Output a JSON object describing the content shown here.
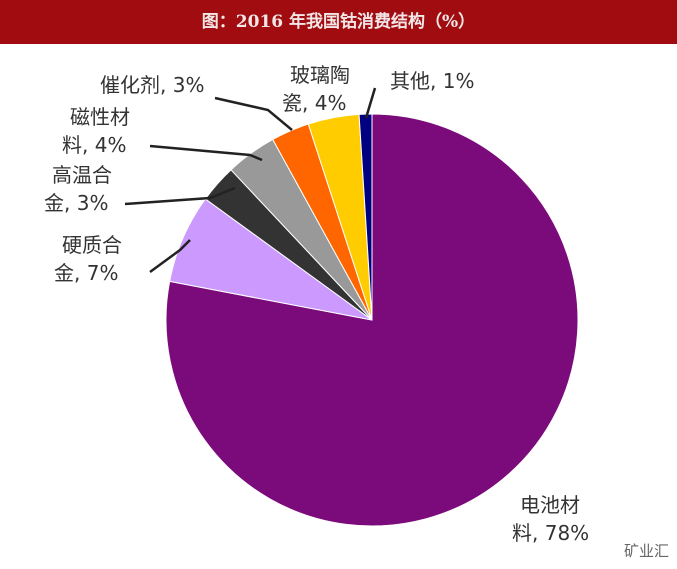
{
  "title": "图：2016 年我国钴消费结构（%）",
  "watermark": "矿业汇",
  "chart_data": {
    "type": "pie",
    "title": "图：2016 年我国钴消费结构（%）",
    "slices": [
      {
        "name": "电池材料",
        "value": 78,
        "label": [
          "电池材",
          "料, 78%"
        ],
        "color": "#7b0a7b"
      },
      {
        "name": "硬质合金",
        "value": 7,
        "label": [
          "硬质合",
          "金, 7%"
        ],
        "color": "#cc99ff"
      },
      {
        "name": "高温合金",
        "value": 3,
        "label": [
          "高温合",
          "金, 3%"
        ],
        "color": "#333333"
      },
      {
        "name": "磁性材料",
        "value": 4,
        "label": [
          "磁性材",
          "料, 4%"
        ],
        "color": "#999999"
      },
      {
        "name": "催化剂",
        "value": 3,
        "label": [
          "催化剂, 3%"
        ],
        "color": "#ff6600"
      },
      {
        "name": "玻璃陶瓷",
        "value": 4,
        "label": [
          "玻璃陶",
          "瓷, 4%"
        ],
        "color": "#ffcc00"
      },
      {
        "name": "其他",
        "value": 1,
        "label": [
          "其他, 1%"
        ],
        "color": "#000080"
      }
    ],
    "start": "top",
    "direction": "clockwise"
  }
}
